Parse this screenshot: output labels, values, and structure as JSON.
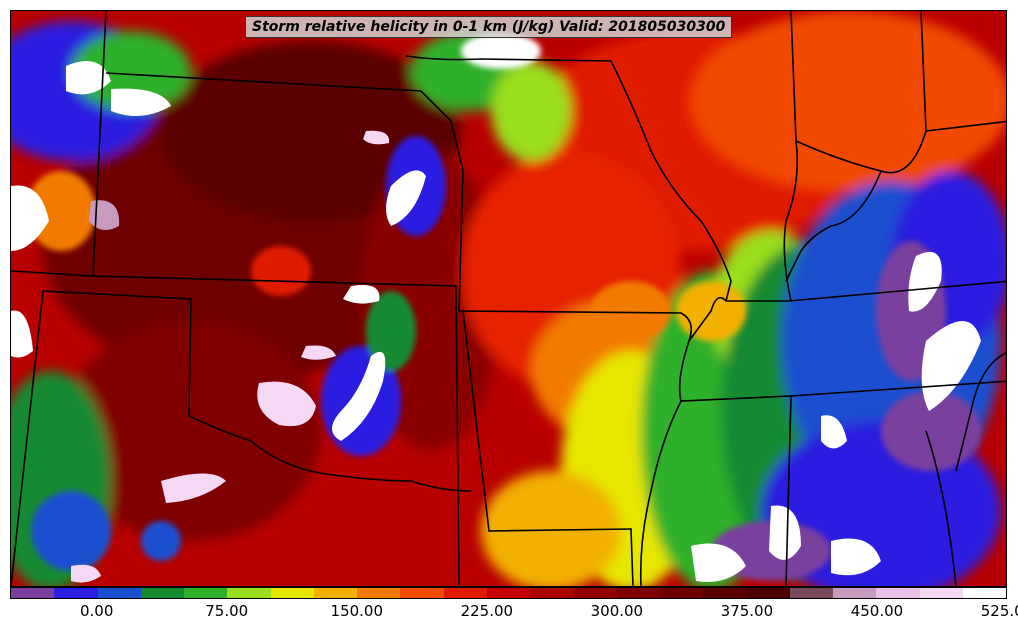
{
  "title": "Storm relative helicity in 0-1 km (J/kg) Valid: 201805030300",
  "colorbar": {
    "colors": [
      "#7a3f9e",
      "#2a1ee0",
      "#1a4fd0",
      "#138a30",
      "#2fb02a",
      "#9ade1f",
      "#e6e600",
      "#f2b000",
      "#f27a00",
      "#f24a00",
      "#e01a00",
      "#c40000",
      "#aa0000",
      "#920000",
      "#800000",
      "#6e0000",
      "#5a0000",
      "#4a0000",
      "#7a4a5a",
      "#c99ac0",
      "#e8c0e8",
      "#f4d8f4",
      "#ffffff"
    ],
    "tick_labels": [
      "0.00",
      "75.00",
      "150.00",
      "225.00",
      "300.00",
      "375.00",
      "450.00",
      "525.00"
    ]
  },
  "icons": {
    "state-boundaries": "state-border-lines"
  }
}
